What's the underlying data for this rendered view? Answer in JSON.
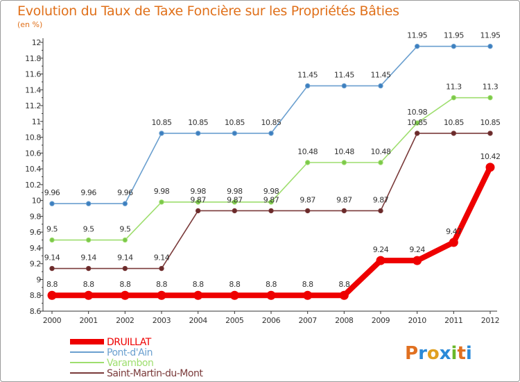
{
  "header": {
    "title": "Evolution du Taux de Taxe Foncière sur les Propriétés Bâties",
    "subtitle": "(en %)"
  },
  "logo": {
    "text": "Proxiti"
  },
  "chart_data": {
    "type": "line",
    "title": "Evolution du Taux de Taxe Foncière sur les Propriétés Bâties",
    "subtitle": "(en %)",
    "x": [
      "2000",
      "2001",
      "2002",
      "2003",
      "2004",
      "2005",
      "2006",
      "2007",
      "2008",
      "2009",
      "2010",
      "2011",
      "2012"
    ],
    "ylim": [
      8.6,
      12
    ],
    "yticks": [
      "8.6",
      "8.8",
      "9",
      "9.2",
      "9.4",
      "9.6",
      "9.8",
      "10",
      "10.2",
      "10.4",
      "10.6",
      "10.8",
      "11",
      "11.2",
      "11.4",
      "11.6",
      "11.8",
      "12"
    ],
    "grid": false,
    "legend_position": "bottom-left",
    "series": [
      {
        "name": "Pont-d'Ain",
        "color": "#6a9fcf",
        "marker": "#3d7fbf",
        "values": [
          9.96,
          9.96,
          9.96,
          10.85,
          10.85,
          10.85,
          10.85,
          11.45,
          11.45,
          11.45,
          11.95,
          11.95,
          11.95
        ],
        "labels": [
          "9.96",
          "9.96",
          "9.96",
          "10.85",
          "10.85",
          "10.85",
          "10.85",
          "11.45",
          "11.45",
          "11.45",
          "11.95",
          "11.95",
          "11.95"
        ]
      },
      {
        "name": "Varambon",
        "color": "#9ede6e",
        "marker": "#7cc84a",
        "values": [
          9.5,
          9.5,
          9.5,
          9.98,
          9.98,
          9.98,
          9.98,
          10.48,
          10.48,
          10.48,
          10.98,
          11.3,
          11.3
        ],
        "labels": [
          "9.5",
          "9.5",
          "9.5",
          "9.98",
          "9.98",
          "9.98",
          "9.98",
          "10.48",
          "10.48",
          "10.48",
          "10.98",
          "11.3",
          "11.3"
        ]
      },
      {
        "name": "Saint-Martin-du-Mont",
        "color": "#7a3a3a",
        "marker": "#6a2a2a",
        "values": [
          9.14,
          9.14,
          9.14,
          9.14,
          9.87,
          9.87,
          9.87,
          9.87,
          9.87,
          9.87,
          10.85,
          10.85,
          10.85
        ],
        "labels": [
          "9.14",
          "9.14",
          "9.14",
          "9.14",
          "9.87",
          "9.87",
          "9.87",
          "9.87",
          "9.87",
          "9.87",
          "10.85",
          "10.85",
          "10.85"
        ]
      },
      {
        "name": "DRUILLAT",
        "color": "#ee0000",
        "marker": "#ee0000",
        "bold": true,
        "values": [
          8.8,
          8.8,
          8.8,
          8.8,
          8.8,
          8.8,
          8.8,
          8.8,
          8.8,
          9.24,
          9.24,
          9.47,
          10.42
        ],
        "labels": [
          "8.8",
          "8.8",
          "8.8",
          "8.8",
          "8.8",
          "8.8",
          "8.8",
          "8.8",
          "8.8",
          "9.24",
          "9.24",
          "9.47",
          "10.42"
        ]
      }
    ],
    "legend_order": [
      "DRUILLAT",
      "Pont-d'Ain",
      "Varambon",
      "Saint-Martin-du-Mont"
    ]
  }
}
